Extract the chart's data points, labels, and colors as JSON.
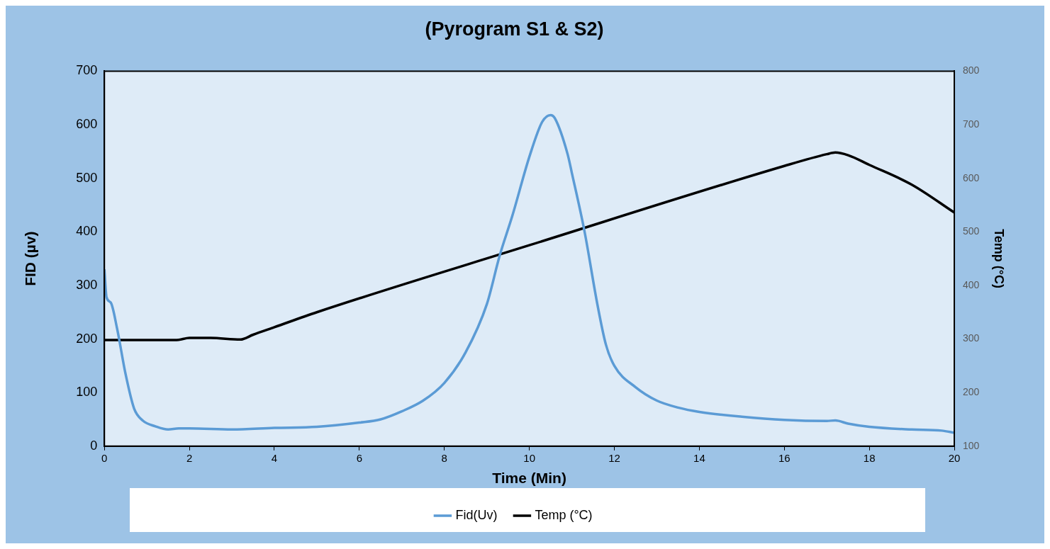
{
  "chart_data": {
    "type": "line",
    "title": "(Pyrogram S1 & S2)",
    "xlabel": "Time (Min)",
    "ylabel": "FID (µv)",
    "y2label": "Temp (°C)",
    "legend": "bottom",
    "xlim": [
      0,
      20
    ],
    "xticks": [
      0,
      2,
      4,
      6,
      8,
      10,
      12,
      14,
      16,
      18,
      20
    ],
    "ylim": [
      0,
      700
    ],
    "yticks": [
      0,
      100,
      200,
      300,
      400,
      500,
      600,
      700
    ],
    "y2lim": [
      100,
      800
    ],
    "y2ticks": [
      100,
      200,
      300,
      400,
      500,
      600,
      700,
      800
    ],
    "series": [
      {
        "name": "Fid(Uv)",
        "color": "#5b9bd5",
        "x": [
          0,
          0.05,
          0.15,
          0.3,
          0.5,
          0.7,
          0.9,
          1.2,
          1.5,
          1.75,
          2,
          3,
          4,
          5,
          6,
          6.5,
          7,
          7.5,
          8,
          8.5,
          9,
          9.3,
          9.6,
          10,
          10.3,
          10.5,
          10.6,
          10.9,
          11.0,
          11.3,
          11.6,
          11.8,
          12,
          12.5,
          13,
          13.5,
          14,
          15,
          16,
          17,
          17.2,
          17.5,
          18,
          19,
          19.7,
          20
        ],
        "values": [
          330,
          278,
          268,
          219,
          134,
          70,
          48,
          37,
          31,
          33,
          33,
          31,
          34,
          36,
          44,
          50,
          65,
          85,
          118,
          175,
          265,
          355,
          430,
          540,
          605,
          618,
          612,
          545,
          510,
          400,
          265,
          190,
          150,
          110,
          85,
          72,
          64,
          55,
          49,
          47,
          48,
          42,
          36,
          31,
          29,
          25
        ]
      },
      {
        "name": "Temp (°C)",
        "color": "#000000",
        "axis": "y2",
        "x": [
          0,
          1.7,
          2,
          2.5,
          3.2,
          3.5,
          4,
          5,
          10,
          16,
          17,
          17.2,
          17.5,
          18,
          19,
          20
        ],
        "values": [
          298,
          298,
          302,
          302,
          299,
          308,
          322,
          350,
          475,
          623,
          645,
          648,
          643,
          625,
          588,
          536
        ]
      }
    ]
  }
}
